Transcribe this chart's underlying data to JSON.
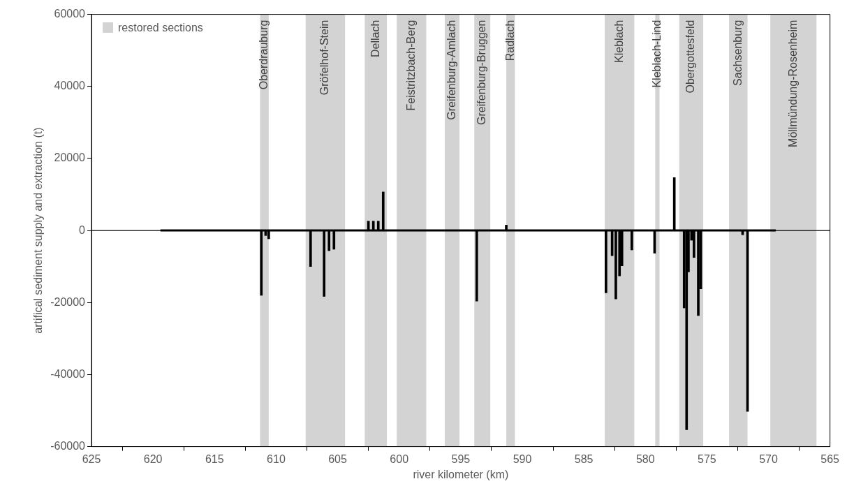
{
  "chart_data": {
    "type": "bar",
    "xlabel": "river kilometer (km)",
    "ylabel": "artifical sediment supply and extraction (t)",
    "xlim": [
      625,
      565
    ],
    "xticks": [
      625,
      620,
      615,
      610,
      605,
      600,
      595,
      590,
      585,
      580,
      575,
      570,
      565
    ],
    "ylim": [
      -60000,
      60000
    ],
    "yticks": [
      -60000,
      -40000,
      -20000,
      0,
      20000,
      40000,
      60000
    ],
    "grid": false,
    "annotations": [
      "restored sections"
    ],
    "series": [
      {
        "color": "#000000",
        "x": [
          611.2,
          610.85,
          610.6,
          607.2,
          606.1,
          605.7,
          605.3,
          602.5,
          602.1,
          601.7,
          601.3,
          593.7,
          591.3,
          583.2,
          582.7,
          582.4,
          582.1,
          581.9,
          581.1,
          579.25,
          577.65,
          576.85,
          576.65,
          576.5,
          576.25,
          576.05,
          575.7,
          575.5,
          572.1,
          571.7
        ],
        "values": [
          -18000,
          -1400,
          -2300,
          -10000,
          -18300,
          -5600,
          -5200,
          2600,
          2600,
          2600,
          10700,
          -19600,
          1500,
          -17300,
          -7000,
          -19000,
          -12600,
          -9800,
          -5400,
          -6300,
          14700,
          -21500,
          -55300,
          -11500,
          -2700,
          -7500,
          -23600,
          -16200,
          -1200,
          -50200
        ]
      },
      {
        "type": "line",
        "color": "#000000",
        "x": [
          619.4,
          569.4
        ],
        "values": [
          0,
          0
        ]
      }
    ],
    "ref_lines": [
      {
        "axis": "y",
        "value": 0,
        "color": "#000000"
      }
    ],
    "bands": [
      {
        "axis": "x",
        "from": 611.3,
        "to": 610.6,
        "label": "Oberdrauburg",
        "color": "#d3d3d3"
      },
      {
        "axis": "x",
        "from": 607.6,
        "to": 604.4,
        "label": "Gröfelhof-Stein",
        "color": "#d3d3d3"
      },
      {
        "axis": "x",
        "from": 602.8,
        "to": 601.0,
        "label": "Dellach",
        "color": "#d3d3d3"
      },
      {
        "axis": "x",
        "from": 600.2,
        "to": 597.8,
        "label": "Feistritzbach-Berg",
        "color": "#d3d3d3"
      },
      {
        "axis": "x",
        "from": 596.3,
        "to": 595.1,
        "label": "Greifenburg-Amlach",
        "color": "#d3d3d3"
      },
      {
        "axis": "x",
        "from": 593.9,
        "to": 592.6,
        "label": "Greifenburg-Bruggen",
        "color": "#d3d3d3"
      },
      {
        "axis": "x",
        "from": 591.3,
        "to": 590.6,
        "label": "Radlach",
        "color": "#d3d3d3"
      },
      {
        "axis": "x",
        "from": 583.3,
        "to": 580.9,
        "label": "Kleblach",
        "color": "#d3d3d3"
      },
      {
        "axis": "x",
        "from": 579.2,
        "to": 578.85,
        "label": "Kleblach-Lind",
        "color": "#d3d3d3"
      },
      {
        "axis": "x",
        "from": 577.25,
        "to": 575.3,
        "label": "Obergottesfeld",
        "color": "#d3d3d3"
      },
      {
        "axis": "x",
        "from": 573.2,
        "to": 571.7,
        "label": "Sachsenburg",
        "color": "#d3d3d3"
      },
      {
        "axis": "x",
        "from": 569.85,
        "to": 566.1,
        "label": "Möllmündung-Rosenheim",
        "color": "#d3d3d3"
      }
    ]
  }
}
